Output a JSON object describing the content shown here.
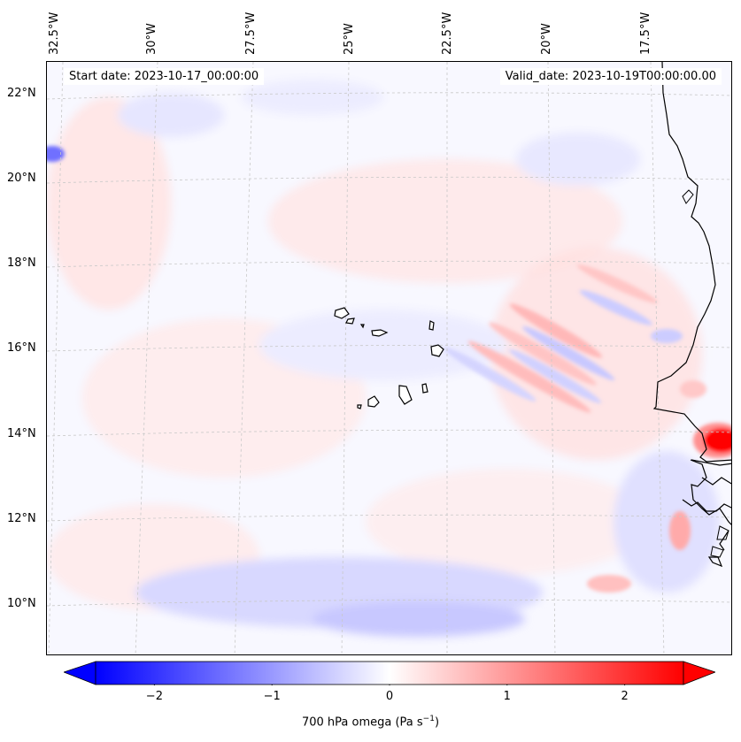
{
  "banner": {
    "start": "Start date: 2023-10-17_00:00:00",
    "valid": "Valid_date: 2023-10-19T00:00:00.00"
  },
  "axes": {
    "lon_labels": [
      "32.5°W",
      "30°W",
      "27.5°W",
      "25°W",
      "22.5°W",
      "20°W",
      "17.5°W"
    ],
    "lat_labels": [
      "22°N",
      "20°N",
      "18°N",
      "16°N",
      "14°N",
      "12°N",
      "10°N"
    ]
  },
  "colorbar": {
    "ticks": [
      "−2",
      "−1",
      "0",
      "1",
      "2"
    ],
    "label": "700 hPa omega (Pa s",
    "label_sup": "−1",
    "label_end": ")",
    "min": -2.7,
    "max": 2.7,
    "low_color": "#0000ff",
    "mid_color": "#ffffff",
    "high_color": "#ff0000"
  },
  "field": {
    "variable": "700 hPa omega",
    "units": "Pa s−1"
  }
}
